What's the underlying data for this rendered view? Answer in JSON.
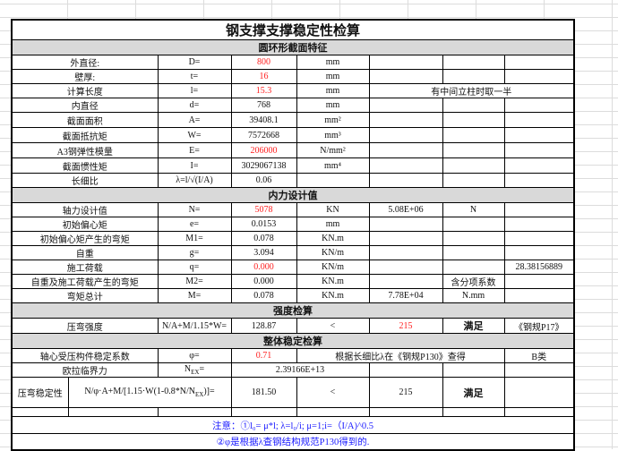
{
  "title": "钢支撑支撑稳定性检算",
  "colors": {
    "red": "#ff2020",
    "blue": "#1a1aff",
    "section_bg": "#d9d9d9"
  },
  "section1": {
    "header": "圆环形截面特征",
    "rows": [
      [
        "外直径:",
        "D=",
        "800",
        "mm",
        "",
        "",
        ""
      ],
      [
        "壁厚:",
        "t=",
        "16",
        "mm",
        "",
        "",
        ""
      ],
      [
        "计算长度",
        "l=",
        "15.3",
        "mm",
        "有中间立柱时取一半"
      ],
      [
        "内直径",
        "d=",
        "768",
        "mm",
        "",
        "",
        ""
      ],
      [
        "截面面积",
        "A=",
        "39408.1",
        "mm²",
        "",
        "",
        ""
      ],
      [
        "截面抵抗矩",
        "W=",
        "7572668",
        "mm³",
        "",
        "",
        ""
      ],
      [
        "A3钢弹性模量",
        "E=",
        "206000",
        "N/mm²",
        "",
        "",
        ""
      ],
      [
        "截面惯性矩",
        "I=",
        "3029067138",
        "mm⁴",
        "",
        "",
        ""
      ],
      [
        "长细比",
        "λ=l/√(I/A)",
        "0.06",
        "",
        "",
        "",
        ""
      ]
    ]
  },
  "section2": {
    "header": "内力设计值",
    "rows": [
      [
        "轴力设计值",
        "N=",
        "5078",
        "KN",
        "5.08E+06",
        "N",
        ""
      ],
      [
        "初始偏心矩",
        "e=",
        "0.0153",
        "mm",
        "",
        "",
        ""
      ],
      [
        "初始偏心矩产生的弯矩",
        "M1=",
        "0.078",
        "KN.m",
        "",
        "",
        ""
      ],
      [
        "自重",
        "g=",
        "3.094",
        "KN/m",
        "",
        "",
        ""
      ],
      [
        "施工荷载",
        "q=",
        "0.000",
        "KN/m",
        "",
        "",
        "28.38156889"
      ],
      [
        "自重及施工荷载产生的弯矩",
        "M2=",
        "0.000",
        "KN.m",
        "",
        "含分项系数",
        ""
      ],
      [
        "弯矩总计",
        "M=",
        "0.078",
        "KN.m",
        "7.78E+04",
        "N.mm",
        ""
      ]
    ]
  },
  "section3": {
    "header": "强度检算",
    "row": [
      "压弯强度",
      "N/A+M/1.15*W=",
      "128.87",
      "<",
      "215",
      "满足",
      "《钢规P17》"
    ]
  },
  "section4": {
    "header": "整体稳定检算",
    "phi_row": [
      "轴心受压构件稳定系数",
      "φ=",
      "0.71",
      "根据长细比λ在《钢规P130》查得",
      "B类"
    ],
    "euler_row": {
      "label": "欧拉临界力",
      "symbol": "N",
      "symbol_sub": "EX",
      "symbol_tail": "=",
      "value": "2.39166E+13"
    },
    "stab_row": {
      "label": "压弯稳定性",
      "formula": "N/φ·A+M/[1.15·W(1-0.8*N/N",
      "formula_sub": "EX",
      "formula_tail": ")]=",
      "value": "181.50",
      "op": "<",
      "limit": "215",
      "result": "满足"
    }
  },
  "notes": [
    "注意：①l₀= μ*l; λ=l₀/i; μ=1;i=（I/A)^0.5",
    "②φ是根据λ查钢结构规范P130得到的."
  ]
}
